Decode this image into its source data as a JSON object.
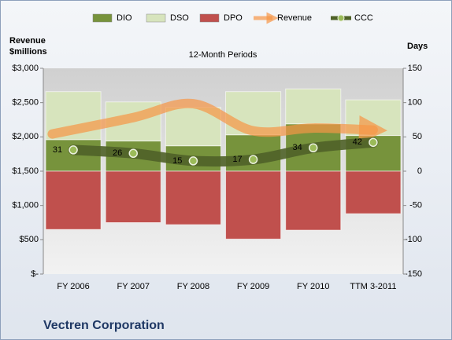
{
  "chart_data": {
    "type": "bar",
    "title": "12-Month Periods",
    "ylabel": [
      "Revenue",
      "$millions"
    ],
    "y2label": "Days",
    "footer": "Vectren Corporation",
    "categories": [
      "FY 2006",
      "FY 2007",
      "FY 2008",
      "FY 2009",
      "FY 2010",
      "TTM 3-2011"
    ],
    "series": [
      {
        "name": "DIO",
        "type": "bar",
        "axis": "y2",
        "color": "#77933c",
        "values": [
          46,
          44,
          37,
          53,
          69,
          52
        ]
      },
      {
        "name": "DSO",
        "type": "bar",
        "axis": "y2",
        "color": "#d7e4bd",
        "values": [
          70,
          57,
          56,
          63,
          51,
          52
        ]
      },
      {
        "name": "DPO",
        "type": "bar",
        "axis": "y2",
        "color": "#c0504d",
        "values": [
          -85,
          -75,
          -78,
          -99,
          -86,
          -62
        ]
      },
      {
        "name": "Revenue",
        "type": "arrow",
        "axis": "y",
        "color": "#f79646",
        "values": [
          2042,
          2282,
          2484,
          2088,
          2129,
          2100
        ]
      },
      {
        "name": "CCC",
        "type": "line",
        "axis": "y2",
        "color": "#4f6228",
        "values": [
          31,
          26,
          15,
          17,
          34,
          42
        ]
      }
    ],
    "ylim": [
      0,
      3000
    ],
    "yticks": [
      {
        "value": 0,
        "label": "$-"
      },
      {
        "value": 500,
        "label": "$500"
      },
      {
        "value": 1000,
        "label": "$1,000"
      },
      {
        "value": 1500,
        "label": "$1,500"
      },
      {
        "value": 2000,
        "label": "$2,000"
      },
      {
        "value": 2500,
        "label": "$2,500"
      },
      {
        "value": 3000,
        "label": "$3,000"
      }
    ],
    "y2lim": [
      -150,
      150
    ],
    "y2ticks": [
      -150,
      -100,
      -50,
      0,
      50,
      100,
      150
    ]
  }
}
